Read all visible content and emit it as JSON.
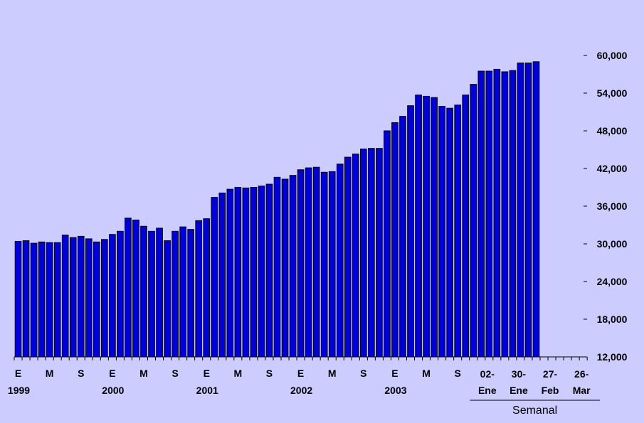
{
  "colors": {
    "background": "#ccccff",
    "bar_fill": "#0000dd",
    "bar_stroke": "#000000",
    "axis": "#000000"
  },
  "chart_data": {
    "type": "bar",
    "title": "",
    "xlabel": "",
    "ylabel": "",
    "ylim": [
      12000,
      60000
    ],
    "y_axis_position": "right",
    "y_ticks": [
      12000,
      18000,
      24000,
      30000,
      36000,
      42000,
      48000,
      54000,
      60000
    ],
    "y_tick_labels": [
      "12,000",
      "18,000",
      "24,000",
      "30,000",
      "36,000",
      "42,000",
      "48,000",
      "54,000",
      "60,000"
    ],
    "grid": false,
    "slot_count": 74,
    "values": [
      30400,
      30500,
      30100,
      30300,
      30200,
      30200,
      31400,
      31000,
      31200,
      30800,
      30300,
      30700,
      31500,
      32000,
      34100,
      33800,
      32800,
      32000,
      32500,
      30500,
      32000,
      32700,
      32300,
      33700,
      34000,
      37400,
      38100,
      38700,
      39000,
      38900,
      39000,
      39200,
      39500,
      40600,
      40300,
      40900,
      41800,
      42100,
      42200,
      41400,
      41500,
      42700,
      43800,
      44300,
      45100,
      45200,
      45200,
      48000,
      49300,
      50300,
      52000,
      53700,
      53500,
      53300,
      51900,
      51600,
      52100,
      53700,
      55400,
      57500,
      57500,
      57800,
      57400,
      57600,
      58800,
      58800,
      59000
    ],
    "month_labels": [
      {
        "index": 0,
        "text": "E"
      },
      {
        "index": 4,
        "text": "M"
      },
      {
        "index": 8,
        "text": "S"
      },
      {
        "index": 12,
        "text": "E"
      },
      {
        "index": 16,
        "text": "M"
      },
      {
        "index": 20,
        "text": "S"
      },
      {
        "index": 24,
        "text": "E"
      },
      {
        "index": 28,
        "text": "M"
      },
      {
        "index": 32,
        "text": "S"
      },
      {
        "index": 36,
        "text": "E"
      },
      {
        "index": 40,
        "text": "M"
      },
      {
        "index": 44,
        "text": "S"
      },
      {
        "index": 48,
        "text": "E"
      },
      {
        "index": 52,
        "text": "M"
      },
      {
        "index": 56,
        "text": "S"
      }
    ],
    "year_labels": [
      {
        "index": 0,
        "text": "1999"
      },
      {
        "index": 12,
        "text": "2000"
      },
      {
        "index": 24,
        "text": "2001"
      },
      {
        "index": 36,
        "text": "2002"
      },
      {
        "index": 48,
        "text": "2003"
      }
    ],
    "week_labels": [
      {
        "index": 60,
        "line1": "02-",
        "line2": "Ene"
      },
      {
        "index": 64,
        "line1": "30-",
        "line2": "Ene"
      },
      {
        "index": 68,
        "line1": "27-",
        "line2": "Feb"
      },
      {
        "index": 72,
        "line1": "26-",
        "line2": "Mar"
      }
    ],
    "weekly_group_label": "Semanal",
    "weekly_group_start_index": 58
  }
}
